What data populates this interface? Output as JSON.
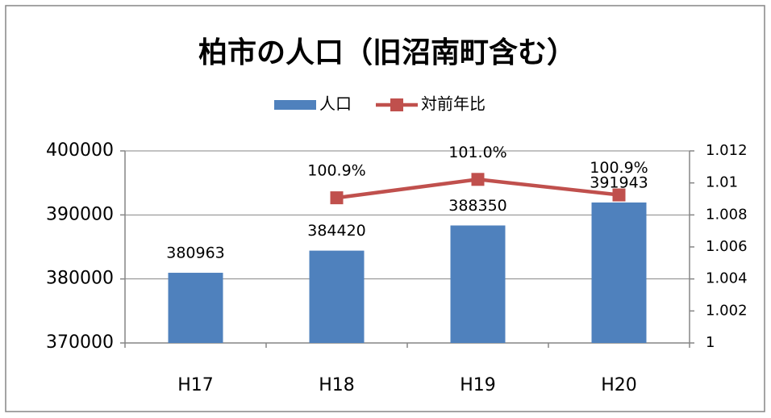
{
  "chart_data": {
    "type": "bar",
    "title": "柏市の人口（旧沼南町含む）",
    "categories": [
      "H17",
      "H18",
      "H19",
      "H20"
    ],
    "series": [
      {
        "name": "人口",
        "type": "bar",
        "color": "#4f81bd",
        "values": [
          380963,
          384420,
          388350,
          391943
        ]
      },
      {
        "name": "対前年比",
        "type": "line",
        "axis": "y2",
        "color": "#c0504d",
        "values": [
          null,
          1.00907,
          1.01022,
          1.00925
        ],
        "value_labels": [
          null,
          "100.9%",
          "101.0%",
          "100.9%"
        ]
      }
    ],
    "ylim": [
      370000,
      400000
    ],
    "yticks": [
      370000,
      380000,
      390000,
      400000
    ],
    "y2lim": [
      1,
      1.012
    ],
    "y2ticks": [
      1,
      1.002,
      1.004,
      1.006,
      1.008,
      1.01,
      1.012
    ],
    "grid": true,
    "legend": "top"
  }
}
